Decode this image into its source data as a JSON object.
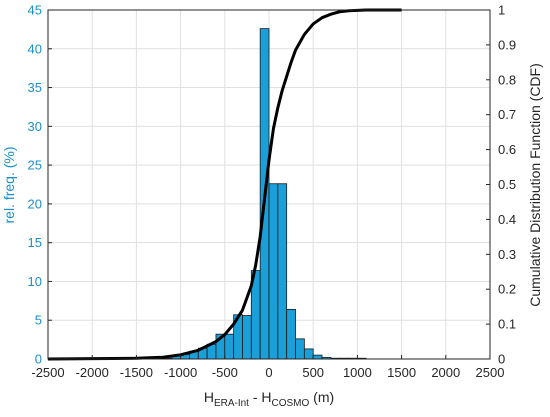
{
  "chart_data": {
    "type": "bar",
    "bin_width": 100,
    "x": [
      -1250,
      -1150,
      -1050,
      -950,
      -850,
      -750,
      -650,
      -550,
      -450,
      -350,
      -250,
      -150,
      -50,
      50,
      150,
      250,
      350,
      450,
      550,
      650,
      750,
      850,
      950,
      1050,
      1150,
      1250
    ],
    "values": [
      0.1,
      0.1,
      0.4,
      0.6,
      1.0,
      1.4,
      1.9,
      3.2,
      3.2,
      5.7,
      5.6,
      11.4,
      42.6,
      22.6,
      22.6,
      6.4,
      2.6,
      1.3,
      0.5,
      0.2,
      0.1,
      0.1,
      0.1,
      0.1,
      0.0,
      0.0
    ],
    "cdf": {
      "x": [
        -2500,
        -1500,
        -1200,
        -1000,
        -800,
        -600,
        -500,
        -400,
        -300,
        -200,
        -150,
        -100,
        -50,
        0,
        50,
        100,
        150,
        200,
        250,
        300,
        400,
        500,
        600,
        700,
        800,
        900,
        1000,
        1100,
        1500
      ],
      "y": [
        0.0,
        0.002,
        0.005,
        0.012,
        0.025,
        0.05,
        0.07,
        0.1,
        0.14,
        0.21,
        0.27,
        0.35,
        0.46,
        0.57,
        0.66,
        0.72,
        0.77,
        0.81,
        0.85,
        0.885,
        0.93,
        0.96,
        0.978,
        0.988,
        0.995,
        0.998,
        0.999,
        1.0,
        1.0
      ]
    },
    "xlim": [
      -2500,
      2500
    ],
    "ylim_left": [
      0,
      45
    ],
    "ylim_right": [
      0,
      1
    ],
    "x_ticks": [
      -2500,
      -2000,
      -1500,
      -1000,
      -500,
      0,
      500,
      1000,
      1500,
      2000,
      2500
    ],
    "y_left_ticks": [
      0,
      5,
      10,
      15,
      20,
      25,
      30,
      35,
      40,
      45
    ],
    "y_right_ticks": [
      "0",
      "0.1",
      "0.2",
      "0.3",
      "0.4",
      "0.5",
      "0.6",
      "0.7",
      "0.8",
      "0.9",
      "1"
    ],
    "ylabel_left": "rel. freq. (%)",
    "ylabel_right": "Cumulative Distribution Function (CDF)",
    "xlabel": {
      "part1": "H",
      "sub1": "ERA-Int",
      "part2": " - H",
      "sub2": "COSMO",
      "part3": " (m)"
    },
    "grid": true,
    "colors": {
      "bar_fill": "#1a9fd8",
      "bar_edge": "#1a1a1a",
      "cdf_line": "#000000",
      "left_axis": "#1a8fc9",
      "grid": "#e0e0e0"
    }
  }
}
